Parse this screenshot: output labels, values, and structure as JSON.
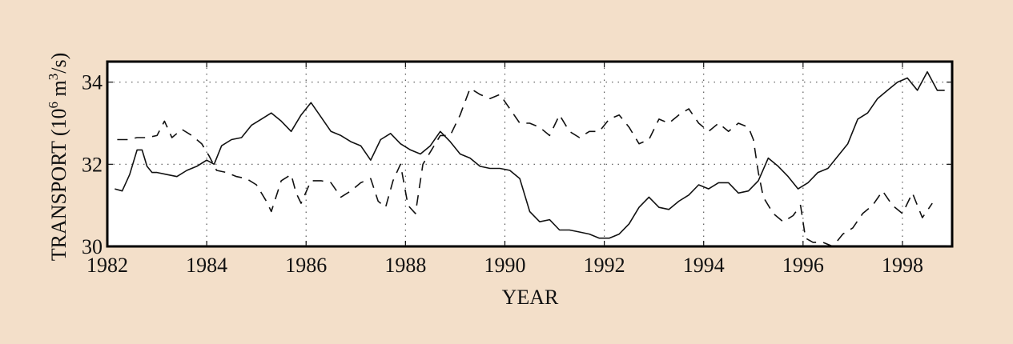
{
  "chart_data": {
    "type": "line",
    "xlabel": "YEAR",
    "ylabel_main": "TRANSPORT (10",
    "ylabel_exp1": "6",
    "ylabel_mid": " m",
    "ylabel_exp2": "3",
    "ylabel_end": "/s)",
    "xlim": [
      1982,
      1999
    ],
    "ylim": [
      30,
      34.5
    ],
    "x_ticks": [
      1982,
      1984,
      1986,
      1988,
      1990,
      1992,
      1994,
      1996,
      1998
    ],
    "x_tick_labels": [
      "1982",
      "1984",
      "1986",
      "1988",
      "1990",
      "1992",
      "1994",
      "1996",
      "1998"
    ],
    "y_ticks": [
      30,
      32,
      34
    ],
    "y_tick_labels": [
      "30",
      "32",
      "34"
    ],
    "grid": true,
    "series": [
      {
        "style": "solid",
        "x": [
          1982.15,
          1982.3,
          1982.45,
          1982.6,
          1982.7,
          1982.8,
          1982.9,
          1983.0,
          1983.2,
          1983.4,
          1983.6,
          1983.8,
          1984.0,
          1984.15,
          1984.3,
          1984.5,
          1984.7,
          1984.9,
          1985.1,
          1985.3,
          1985.5,
          1985.7,
          1985.9,
          1986.1,
          1986.3,
          1986.5,
          1986.7,
          1986.9,
          1987.1,
          1987.3,
          1987.5,
          1987.7,
          1987.9,
          1988.1,
          1988.3,
          1988.5,
          1988.7,
          1988.9,
          1989.1,
          1989.3,
          1989.5,
          1989.7,
          1989.9,
          1990.1,
          1990.3,
          1990.5,
          1990.7,
          1990.9,
          1991.1,
          1991.3,
          1991.5,
          1991.7,
          1991.9,
          1992.1,
          1992.3,
          1992.5,
          1992.7,
          1992.9,
          1993.1,
          1993.3,
          1993.5,
          1993.7,
          1993.9,
          1994.1,
          1994.3,
          1994.5,
          1994.7,
          1994.9,
          1995.1,
          1995.3,
          1995.5,
          1995.7,
          1995.9,
          1996.1,
          1996.3,
          1996.5,
          1996.7,
          1996.9,
          1997.1,
          1997.3,
          1997.5,
          1997.7,
          1997.9,
          1998.1,
          1998.3,
          1998.5,
          1998.7,
          1998.85
        ],
        "y": [
          31.4,
          31.35,
          31.75,
          32.35,
          32.35,
          31.95,
          31.8,
          31.8,
          31.75,
          31.7,
          31.85,
          31.95,
          32.1,
          32.0,
          32.45,
          32.6,
          32.65,
          32.95,
          33.1,
          33.25,
          33.05,
          32.8,
          33.2,
          33.5,
          33.15,
          32.8,
          32.7,
          32.55,
          32.45,
          32.1,
          32.6,
          32.75,
          32.5,
          32.35,
          32.25,
          32.45,
          32.8,
          32.55,
          32.25,
          32.15,
          31.95,
          31.9,
          31.9,
          31.85,
          31.65,
          30.85,
          30.6,
          30.65,
          30.4,
          30.4,
          30.35,
          30.3,
          30.2,
          30.2,
          30.3,
          30.55,
          30.95,
          31.2,
          30.95,
          30.9,
          31.1,
          31.25,
          31.5,
          31.4,
          31.55,
          31.55,
          31.3,
          31.35,
          31.6,
          32.15,
          31.95,
          31.7,
          31.4,
          31.55,
          31.8,
          31.9,
          32.2,
          32.5,
          33.1,
          33.25,
          33.6,
          33.8,
          34.0,
          34.1,
          33.8,
          34.25,
          33.8,
          33.8
        ]
      },
      {
        "style": "dashed",
        "x": [
          1982.2,
          1982.4,
          1982.6,
          1982.8,
          1983.0,
          1983.15,
          1983.3,
          1983.5,
          1983.7,
          1983.9,
          1984.05,
          1984.2,
          1984.4,
          1984.6,
          1984.8,
          1985.0,
          1985.2,
          1985.3,
          1985.5,
          1985.7,
          1985.8,
          1985.9,
          1986.1,
          1986.3,
          1986.5,
          1986.7,
          1986.9,
          1987.1,
          1987.3,
          1987.45,
          1987.6,
          1987.75,
          1987.9,
          1988.05,
          1988.2,
          1988.35,
          1988.5,
          1988.7,
          1988.9,
          1989.1,
          1989.3,
          1989.5,
          1989.7,
          1989.9,
          1990.1,
          1990.3,
          1990.5,
          1990.7,
          1990.9,
          1991.1,
          1991.3,
          1991.5,
          1991.7,
          1991.9,
          1992.1,
          1992.3,
          1992.5,
          1992.7,
          1992.9,
          1993.1,
          1993.3,
          1993.5,
          1993.7,
          1993.9,
          1994.1,
          1994.3,
          1994.5,
          1994.7,
          1994.9,
          1995.0,
          1995.1,
          1995.2,
          1995.4,
          1995.6,
          1995.8,
          1995.95,
          1996.05,
          1996.2,
          1996.4,
          1996.6,
          1996.8,
          1997.0,
          1997.2,
          1997.4,
          1997.6,
          1997.8,
          1998.0,
          1998.2,
          1998.4,
          1998.6
        ],
        "y": [
          32.6,
          32.6,
          32.65,
          32.65,
          32.7,
          33.05,
          32.65,
          32.85,
          32.7,
          32.5,
          32.2,
          31.85,
          31.8,
          31.7,
          31.65,
          31.5,
          31.1,
          30.85,
          31.6,
          31.75,
          31.3,
          31.05,
          31.6,
          31.6,
          31.55,
          31.2,
          31.35,
          31.55,
          31.65,
          31.1,
          30.95,
          31.6,
          32.0,
          31.0,
          30.8,
          32.0,
          32.3,
          32.7,
          32.7,
          33.2,
          33.85,
          33.7,
          33.6,
          33.7,
          33.35,
          33.0,
          33.0,
          32.9,
          32.7,
          33.2,
          32.8,
          32.65,
          32.8,
          32.8,
          33.1,
          33.2,
          32.9,
          32.5,
          32.6,
          33.1,
          33.0,
          33.2,
          33.35,
          33.0,
          32.8,
          33.0,
          32.8,
          33.0,
          32.9,
          32.6,
          31.8,
          31.2,
          30.8,
          30.6,
          30.75,
          31.0,
          30.2,
          30.1,
          30.1,
          30.0,
          30.3,
          30.45,
          30.8,
          31.0,
          31.35,
          31.0,
          30.8,
          31.3,
          30.7,
          31.05
        ]
      }
    ]
  }
}
